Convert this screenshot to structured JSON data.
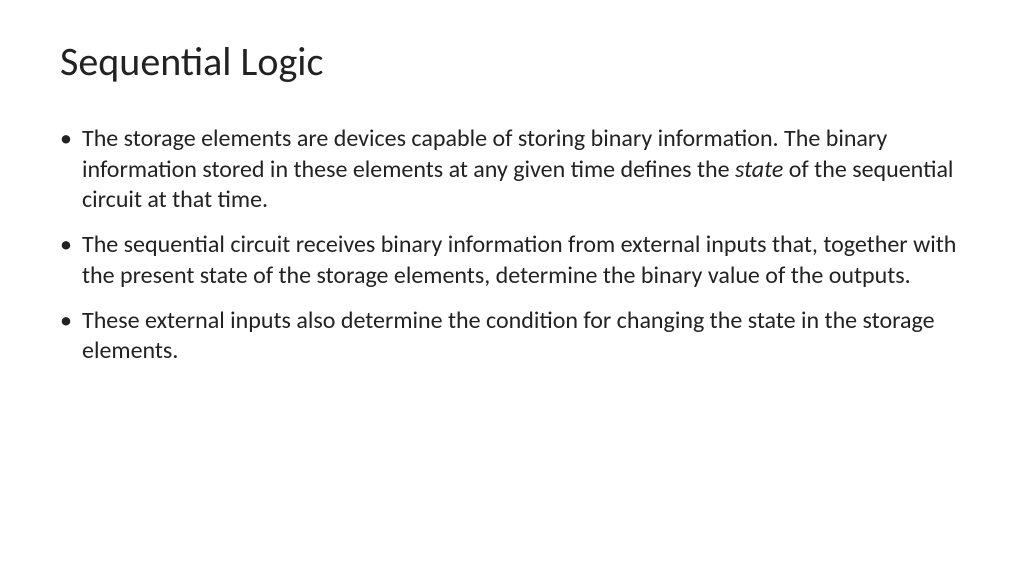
{
  "slide": {
    "title": "Sequential Logic",
    "title_fontsize": 40,
    "title_color": "#222222",
    "body_fontsize": 24,
    "body_color": "#222222",
    "background_color": "#ffffff",
    "bullets": [
      {
        "pre": "The storage elements are devices capable of storing binary information. The binary information stored in these elements at any given time defines the ",
        "italic": "state",
        "post": " of the sequential circuit at that time."
      },
      {
        "pre": "The sequential circuit receives binary information from external inputs that, together with the present state of the storage elements, determine the binary value of the outputs.",
        "italic": "",
        "post": ""
      },
      {
        "pre": "These external inputs also determine the condition for changing the state in the storage elements.",
        "italic": "",
        "post": ""
      }
    ]
  }
}
